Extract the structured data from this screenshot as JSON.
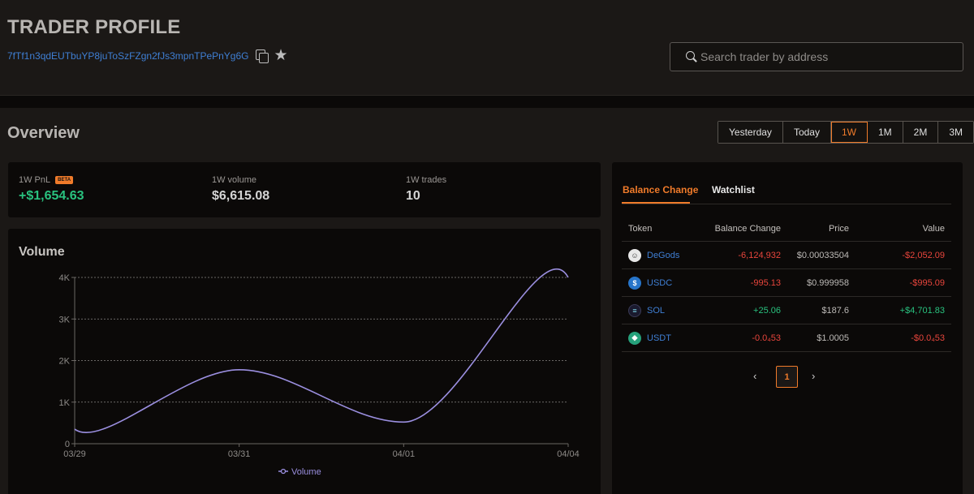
{
  "header": {
    "title": "TRADER PROFILE",
    "address": "7fTf1n3qdEUTbuYP8juToSzFZgn2fJs3mpnTPePnYg6G",
    "copy_icon": "copy-icon",
    "star_icon": "star-icon"
  },
  "search": {
    "placeholder": "Search trader by address",
    "value": ""
  },
  "overview": {
    "title": "Overview",
    "ranges": [
      "Yesterday",
      "Today",
      "1W",
      "1M",
      "2M",
      "3M"
    ],
    "active_range": "1W"
  },
  "stats": {
    "pnl_label": "1W PnL",
    "pnl_badge": "BETA",
    "pnl_value": "+$1,654.63",
    "volume_label": "1W volume",
    "volume_value": "$6,615.08",
    "trades_label": "1W trades",
    "trades_value": "10"
  },
  "volume_chart": {
    "title": "Volume",
    "chart_data": {
      "type": "line",
      "title": "Volume",
      "x": [
        "03/29",
        "03/31",
        "04/01",
        "04/04"
      ],
      "x_ticks": [
        "03/29",
        "03/31",
        "04/01",
        "04/04"
      ],
      "y_ticks": [
        "0",
        "1K",
        "2K",
        "3K",
        "4K"
      ],
      "ylim": [
        0,
        4000
      ],
      "series": [
        {
          "name": "Volume",
          "values": [
            350,
            1780,
            520,
            4000
          ]
        }
      ],
      "legend": "bottom-center",
      "grid": true,
      "color": "#9b8fe0"
    }
  },
  "balance": {
    "tabs": [
      "Balance Change",
      "Watchlist"
    ],
    "active_tab": "Balance Change",
    "columns": [
      "Token",
      "Balance Change",
      "Price",
      "Value"
    ],
    "rows": [
      {
        "token": "DeGods",
        "icon": "degods-icon",
        "change": "-6,124,932",
        "price": "$0.00033504",
        "value": "-$2,052.09",
        "trend": "neg"
      },
      {
        "token": "USDC",
        "icon": "usdc-icon",
        "change": "-995.13",
        "price": "$0.999958",
        "value": "-$995.09",
        "trend": "neg"
      },
      {
        "token": "SOL",
        "icon": "sol-icon",
        "change": "+25.06",
        "price": "$187.6",
        "value": "+$4,701.83",
        "trend": "pos"
      },
      {
        "token": "USDT",
        "icon": "usdt-icon",
        "change": "-0.0₄53",
        "price": "$1.0005",
        "value": "-$0.0₄53",
        "trend": "neg"
      }
    ],
    "pagination": {
      "prev": "‹",
      "current": "1",
      "next": "›"
    }
  },
  "colors": {
    "accent": "#f07b2a",
    "positive": "#29c27f",
    "negative": "#e8453c",
    "link": "#3f7fd4",
    "chart_line": "#9b8fe0"
  }
}
